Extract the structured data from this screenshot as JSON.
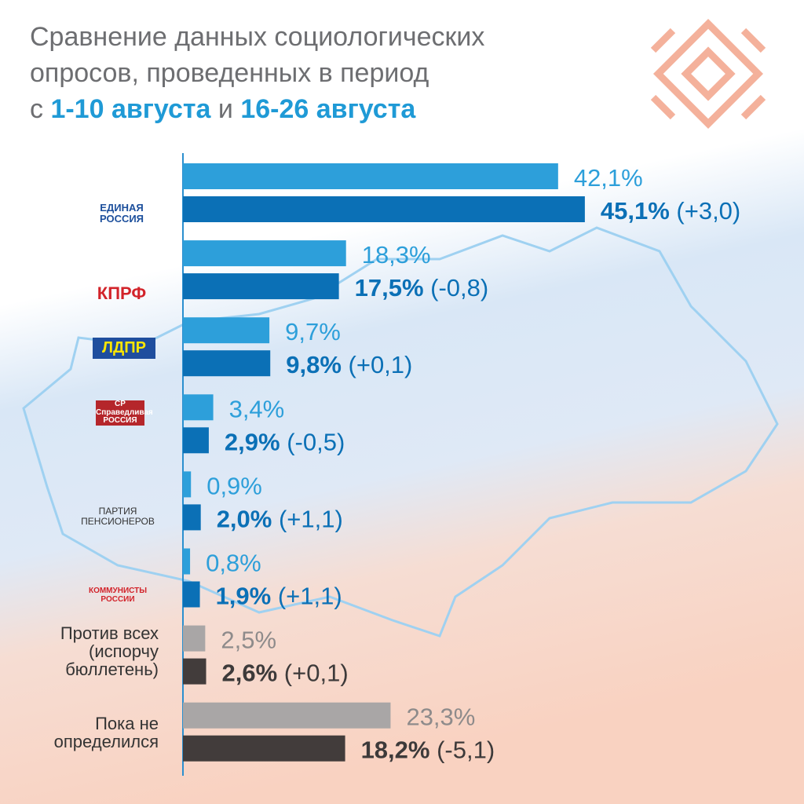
{
  "chart_data": {
    "type": "grouped-bar",
    "title": "Сравнение данных социологических\nопросов, проведенных в период",
    "period_prefix": "с",
    "conjunction": "и",
    "categories": [
      "ЕДИНАЯ\nРОССИЯ",
      "КПРФ",
      "ЛДПР",
      "СР\nСправедливая\nРОССИЯ",
      "ПАРТИЯ\nПЕНСИОНЕРОВ",
      "КОММУНИСТЫ\nРОССИИ",
      "Против всех\n(испорчу\nбюллетень)",
      "Пока не\nопределился"
    ],
    "xlim": [
      0,
      60
    ],
    "series": [
      {
        "name": "1-10 августа",
        "color": "#2d9fda",
        "colors": [
          "#2d9fda",
          "#2d9fda",
          "#2d9fda",
          "#2d9fda",
          "#2d9fda",
          "#2d9fda",
          "#a9a6a6",
          "#a9a6a6"
        ],
        "values": [
          42.1,
          18.3,
          9.7,
          3.4,
          0.9,
          0.8,
          2.5,
          23.3
        ],
        "value_labels": [
          "42,1%",
          "18,3%",
          "9,7%",
          "3,4%",
          "0,9%",
          "0,8%",
          "2,5%",
          "23,3%"
        ]
      },
      {
        "name": "16-26 августа",
        "color": "#0b70b6",
        "colors": [
          "#0b70b6",
          "#0b70b6",
          "#0b70b6",
          "#0b70b6",
          "#0b70b6",
          "#0b70b6",
          "#423c3b",
          "#423c3b"
        ],
        "values": [
          45.1,
          17.5,
          9.8,
          2.9,
          2.0,
          1.9,
          2.6,
          18.2
        ],
        "value_labels": [
          "45,1%",
          "17,5%",
          "9,8%",
          "2,9%",
          "2,0%",
          "1,9%",
          "2,6%",
          "18,2%"
        ],
        "changes": [
          3.0,
          -0.8,
          0.1,
          -0.5,
          1.1,
          1.1,
          0.1,
          -5.1
        ],
        "change_labels": [
          "(+3,0)",
          "(-0,8)",
          "(+0,1)",
          "(-0,5)",
          "(+1,1)",
          "(+1,1)",
          "(+0,1)",
          "(-5,1)"
        ]
      }
    ]
  }
}
